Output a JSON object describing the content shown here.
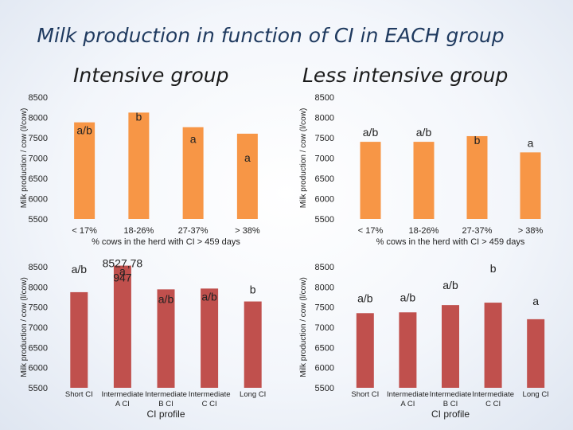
{
  "title": "Milk production in function of CI in EACH group",
  "panel_titles": {
    "left": "Intensive group",
    "right": "Less intensive group"
  },
  "colors": {
    "orange": "#F79646",
    "red": "#C0504D",
    "title": "#1F3A5F"
  },
  "chart_data": [
    {
      "id": "intensive-herd",
      "type": "bar",
      "group": "Intensive group",
      "categories": [
        "< 17%",
        "18-26%",
        "27-37%",
        "> 38%"
      ],
      "values": [
        7880,
        8120,
        7760,
        7600
      ],
      "annotations": [
        "a/b",
        "b",
        "a",
        "a"
      ],
      "extra_labels": [],
      "xlabel": "% cows in the herd with CI > 459 days",
      "ylabel": "Milk production / cow (l/cow)",
      "ylim": [
        5500,
        8500
      ],
      "yticks": [
        "5500",
        "6000",
        "6500",
        "7000",
        "7500",
        "8000",
        "8500"
      ],
      "color": "#F79646"
    },
    {
      "id": "less-intensive-herd",
      "type": "bar",
      "group": "Less intensive group",
      "categories": [
        "< 17%",
        "18-26%",
        "27-37%",
        "> 38%"
      ],
      "values": [
        7400,
        7400,
        7540,
        7140
      ],
      "annotations": [
        "a/b",
        "a/b",
        "b",
        "a"
      ],
      "extra_labels": [],
      "xlabel": "% cows in the herd with CI > 459 days",
      "ylabel": "Milk production / cow (l/cow)",
      "ylim": [
        5500,
        8500
      ],
      "yticks": [
        "5500",
        "6000",
        "6500",
        "7000",
        "7500",
        "8000",
        "8500"
      ],
      "color": "#F79646"
    },
    {
      "id": "intensive-profile",
      "type": "bar",
      "group": "Intensive group",
      "categories": [
        "Short CI",
        "Intermediate A CI",
        "Intermediate B CI",
        "Intermediate C CI",
        "Long CI"
      ],
      "values": [
        7870,
        8528,
        7940,
        7960,
        7640
      ],
      "annotations": [
        "a/b",
        "a",
        "a/b",
        "a/b",
        "b"
      ],
      "extra_labels": [
        "8527,78",
        "947"
      ],
      "xlabel": "CI profile",
      "ylabel": "Milk production / cow (l/cow)",
      "ylim": [
        5500,
        8500
      ],
      "yticks": [
        "5500",
        "6000",
        "6500",
        "7000",
        "7500",
        "8000",
        "8500"
      ],
      "color": "#C0504D"
    },
    {
      "id": "less-intensive-profile",
      "type": "bar",
      "group": "Less intensive group",
      "categories": [
        "Short CI",
        "Intermediate A CI",
        "Intermediate B CI",
        "Intermediate C CI",
        "Long CI"
      ],
      "values": [
        7350,
        7370,
        7550,
        7610,
        7200
      ],
      "annotations": [
        "a/b",
        "a/b",
        "a/b",
        "b",
        "a"
      ],
      "extra_labels": [],
      "xlabel": "CI profile",
      "ylabel": "Milk production / cow (l/cow)",
      "ylim": [
        5500,
        8500
      ],
      "yticks": [
        "5500",
        "6000",
        "6500",
        "7000",
        "7500",
        "8000",
        "8500"
      ],
      "color": "#C0504D"
    }
  ]
}
